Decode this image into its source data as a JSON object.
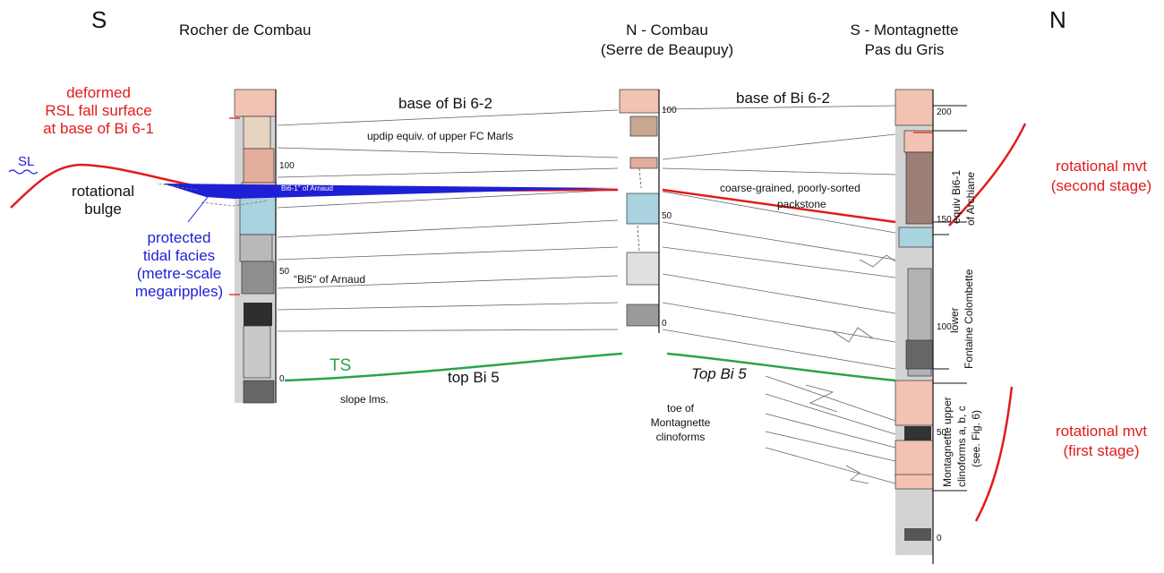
{
  "compass": {
    "south": "S",
    "north": "N"
  },
  "sections": {
    "left": {
      "title": "Rocher de Combau",
      "ticks": [
        "100",
        "50",
        "0"
      ]
    },
    "middle": {
      "title_line1": "N - Combau",
      "title_line2": "(Serre de Beaupuy)",
      "ticks": [
        "100",
        "50",
        "0"
      ]
    },
    "right": {
      "title_line1": "S - Montagnette",
      "title_line2": "Pas du Gris",
      "ticks": [
        "200",
        "150",
        "100",
        "50",
        "0"
      ]
    }
  },
  "labels": {
    "deformed_1": "deformed",
    "deformed_2": "RSL fall surface",
    "deformed_3": "at base of Bi 6-1",
    "sl": "SL",
    "bulge_1": "rotational",
    "bulge_2": "bulge",
    "protected_1": "protected",
    "protected_2": "tidal facies",
    "protected_3": "(metre-scale",
    "protected_4": "megaripples)",
    "base_left": "base of Bi 6-2",
    "base_right": "base of Bi 6-2",
    "updip": "updip equiv. of upper FC Marls",
    "bi61_arnaud": "Bi6-1\" of Arnaud",
    "bi5_arnaud": "“Bi5“ of Arnaud",
    "coarse_1": "coarse-grained, poorly-sorted",
    "coarse_2": "packstone",
    "ts": "TS",
    "top_bi5_left": "top Bi 5",
    "top_bi5_right": "Top Bi 5",
    "slope": "slope lms.",
    "toe_1": "toe of",
    "toe_2": "Montagnette",
    "toe_3": "clinoforms",
    "equiv_1": "equiv Bi6-1",
    "equiv_2": "of Archiane",
    "lower_1": "lower",
    "lower_2": "Fontaine Colombette",
    "upper_1": "Montagnette upper",
    "upper_2": "clinoforms a, b, c",
    "upper_3": "(see. Fig. 6)",
    "rot2_1": "rotational mvt",
    "rot2_2": "(second stage)",
    "rot1_1": "rotational mvt",
    "rot1_2": "(first stage)"
  },
  "colors": {
    "red": "#e21b1b",
    "blue": "#1f1fd6",
    "green": "#2aa44a",
    "pink": "#f2c3b2",
    "lightblue": "#a9d3df",
    "grey": "#bdbdbd"
  }
}
